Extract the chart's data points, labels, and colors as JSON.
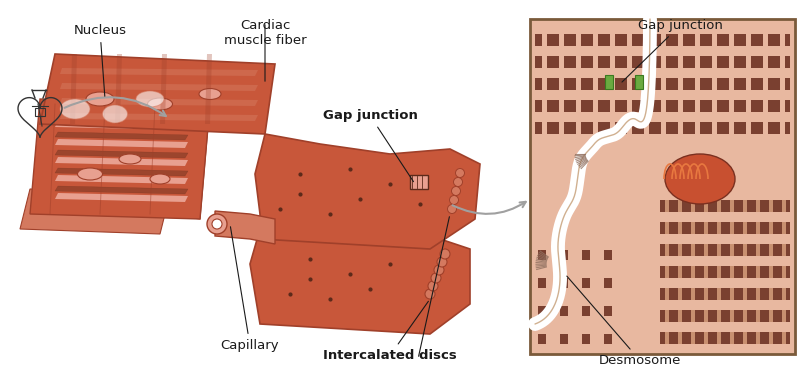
{
  "bg_color": "#ffffff",
  "muscle_color": "#c8573a",
  "muscle_dark": "#a0402a",
  "muscle_light": "#d4795f",
  "muscle_lightest": "#e8a090",
  "sarcomere_dark": "#5c2a1a",
  "sarcomere_mid": "#8b4a2a",
  "zoom_bg": "#e8b8a0",
  "zoom_border": "#8b6a50",
  "mito_color": "#c85030",
  "mito_inner": "#e87840",
  "gap_color": "#6aaa40",
  "white_color": "#ffffff",
  "heart_color": "#1a1a1a",
  "arrow_color": "#a0a0a0",
  "label_color": "#1a1a1a",
  "capillary_label": "Capillary",
  "intercalated_label": "Intercalated discs",
  "gap_junction_label": "Gap junction",
  "nucleus_label": "Nucleus",
  "cardiac_label": "Cardiac\nmuscle fiber",
  "desmosome_label": "Desmosome",
  "gap_junction2_label": "Gap junction",
  "figsize": [
    8.0,
    3.74
  ],
  "dpi": 100
}
